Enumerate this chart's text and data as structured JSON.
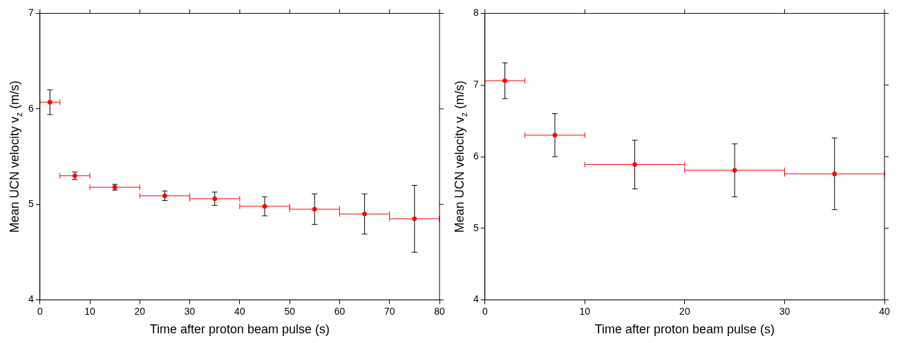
{
  "chart_data": [
    {
      "type": "scatter",
      "xlabel": "Time after proton beam pulse (s)",
      "ylabel": "Mean UCN velocity v$_{z}$ (m/s)",
      "xlim": [
        0,
        80
      ],
      "ylim": [
        4,
        7
      ],
      "xticks": [
        0,
        10,
        20,
        30,
        40,
        50,
        60,
        70,
        80
      ],
      "yticks": [
        4,
        5,
        6,
        7
      ],
      "grid": false,
      "legend": false,
      "marker": "circle",
      "series": [
        {
          "color": "#ff0000",
          "x": [
            2,
            7,
            15,
            25,
            35,
            45,
            55,
            65,
            75
          ],
          "values": [
            6.07,
            5.3,
            5.18,
            5.09,
            5.06,
            4.98,
            4.95,
            4.9,
            4.85
          ],
          "errors": [
            0.13,
            0.04,
            0.03,
            0.05,
            0.07,
            0.1,
            0.16,
            0.21,
            0.35
          ],
          "xerrors": [
            [
              0,
              4
            ],
            [
              4,
              10
            ],
            [
              10,
              20
            ],
            [
              20,
              30
            ],
            [
              30,
              40
            ],
            [
              40,
              50
            ],
            [
              50,
              60
            ],
            [
              60,
              70
            ],
            [
              70,
              80
            ]
          ]
        }
      ]
    },
    {
      "type": "scatter",
      "xlabel": "Time after proton beam pulse (s)",
      "ylabel": "Mean UCN velocity v$_{z}$ (m/s)",
      "xlim": [
        0,
        40
      ],
      "ylim": [
        4,
        8
      ],
      "xticks": [
        0,
        10,
        20,
        30,
        40
      ],
      "yticks": [
        4,
        5,
        6,
        7,
        8
      ],
      "grid": false,
      "legend": false,
      "marker": "circle",
      "series": [
        {
          "color": "#ff0000",
          "x": [
            2,
            7,
            15,
            25,
            35
          ],
          "values": [
            7.06,
            6.3,
            5.89,
            5.81,
            5.76
          ],
          "errors": [
            0.25,
            0.3,
            0.34,
            0.37,
            0.5
          ],
          "xerrors": [
            [
              0,
              4
            ],
            [
              4,
              10
            ],
            [
              10,
              20
            ],
            [
              20,
              30
            ],
            [
              30,
              40
            ]
          ]
        }
      ]
    }
  ]
}
